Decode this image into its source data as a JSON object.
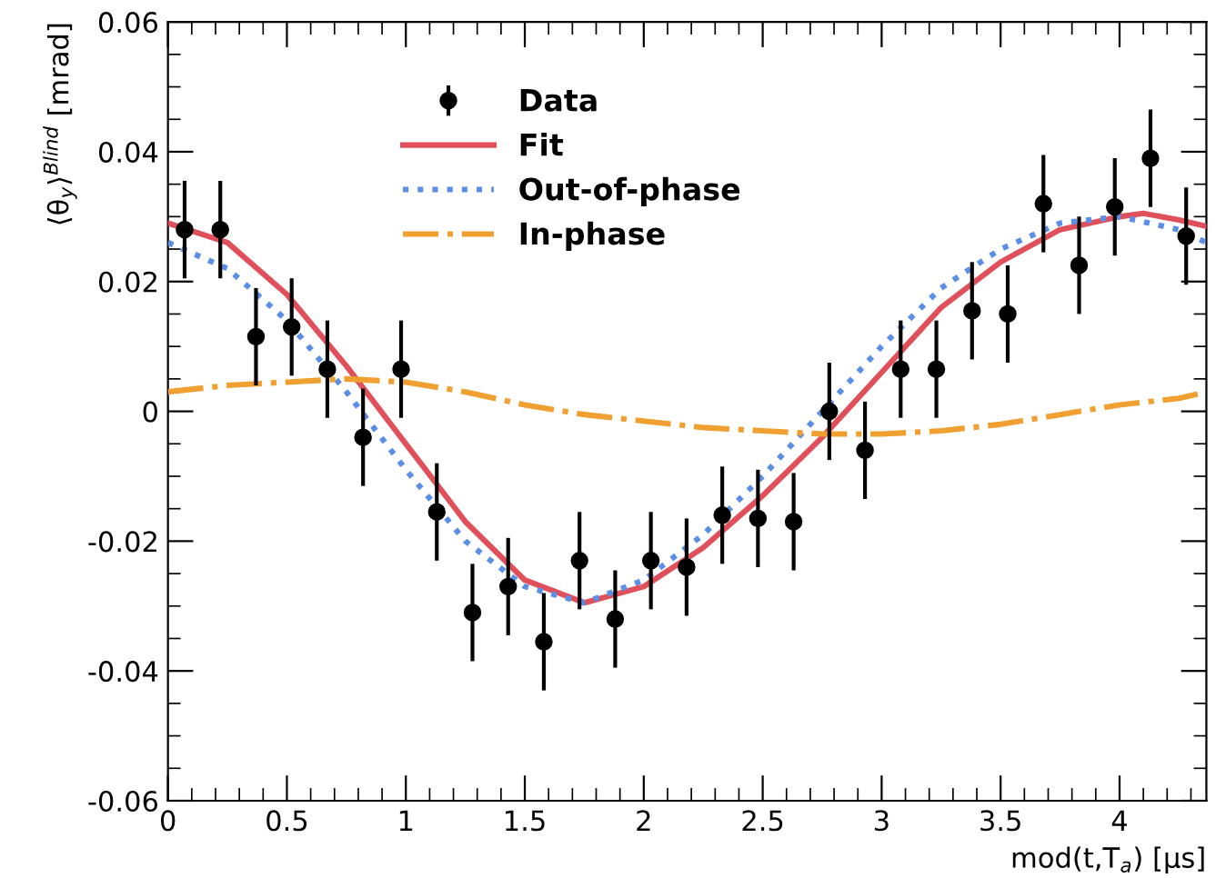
{
  "chart_data": {
    "type": "scatter",
    "xlabel": "mod(t,T$_{a}$) [μs]",
    "ylabel": "⟨θ$_{y}$⟩$^{Blind}$ [mrad]",
    "xlim": [
      0,
      4.365
    ],
    "xticks": [
      0,
      0.5,
      1,
      1.5,
      2,
      2.5,
      3,
      3.5,
      4
    ],
    "ylim": [
      -0.06,
      0.06
    ],
    "yticks": [
      -0.06,
      -0.04,
      -0.02,
      0,
      0.02,
      0.04,
      0.06
    ],
    "grid": false,
    "legend": "top left",
    "series": [
      {
        "name": "Data",
        "color": "#000000",
        "marker": "circle",
        "x": [
          0.07,
          0.22,
          0.37,
          0.52,
          0.67,
          0.82,
          0.98,
          1.13,
          1.28,
          1.43,
          1.58,
          1.73,
          1.88,
          2.03,
          2.18,
          2.33,
          2.48,
          2.63,
          2.78,
          2.93,
          3.08,
          3.23,
          3.38,
          3.53,
          3.68,
          3.83,
          3.98,
          4.13,
          4.28
        ],
        "values": [
          0.028,
          0.028,
          0.0115,
          0.013,
          0.0065,
          -0.004,
          0.0065,
          -0.0155,
          -0.031,
          -0.027,
          -0.0355,
          -0.023,
          -0.032,
          -0.023,
          -0.024,
          -0.016,
          -0.0165,
          -0.017,
          0.0,
          -0.006,
          0.0065,
          0.0065,
          0.0155,
          0.015,
          0.032,
          0.0225,
          0.0315,
          0.039,
          0.027
        ],
        "errors": [
          0.0075,
          0.0075,
          0.0075,
          0.0075,
          0.0075,
          0.0075,
          0.0075,
          0.0075,
          0.0075,
          0.0075,
          0.0075,
          0.0075,
          0.0075,
          0.0075,
          0.0075,
          0.0075,
          0.0075,
          0.0075,
          0.0075,
          0.0075,
          0.0075,
          0.0075,
          0.0075,
          0.0075,
          0.0075,
          0.0075,
          0.0075,
          0.0075,
          0.0075
        ]
      },
      {
        "name": "Fit",
        "type": "line",
        "color": "#e0505a",
        "line_style": "solid",
        "x": [
          0,
          0.25,
          0.5,
          0.75,
          1.0,
          1.25,
          1.5,
          1.75,
          2.0,
          2.25,
          2.5,
          2.75,
          3.0,
          3.25,
          3.5,
          3.75,
          4.0,
          4.1,
          4.25,
          4.365
        ],
        "values": [
          0.029,
          0.026,
          0.018,
          0.007,
          -0.005,
          -0.017,
          -0.026,
          -0.0295,
          -0.027,
          -0.021,
          -0.013,
          -0.004,
          0.006,
          0.016,
          0.023,
          0.028,
          0.03,
          0.0305,
          0.0295,
          0.0285
        ]
      },
      {
        "name": "Out-of-phase",
        "type": "line",
        "color": "#5b8ee6",
        "line_style": "dotted",
        "x": [
          0,
          0.25,
          0.5,
          0.75,
          1.0,
          1.25,
          1.5,
          1.75,
          2.0,
          2.25,
          2.5,
          2.75,
          3.0,
          3.25,
          3.5,
          3.75,
          4.0,
          4.25,
          4.365
        ],
        "values": [
          0.026,
          0.022,
          0.014,
          0.003,
          -0.009,
          -0.02,
          -0.027,
          -0.0295,
          -0.026,
          -0.019,
          -0.01,
          0.0,
          0.01,
          0.019,
          0.025,
          0.029,
          0.03,
          0.028,
          0.026
        ]
      },
      {
        "name": "In-phase",
        "type": "line",
        "color": "#f0a030",
        "line_style": "dashdot",
        "x": [
          0,
          0.25,
          0.5,
          0.75,
          1.0,
          1.25,
          1.5,
          1.75,
          2.0,
          2.25,
          2.5,
          2.75,
          3.0,
          3.25,
          3.5,
          3.75,
          4.0,
          4.25,
          4.365
        ],
        "values": [
          0.003,
          0.004,
          0.0045,
          0.005,
          0.0045,
          0.003,
          0.001,
          -0.0005,
          -0.0015,
          -0.0025,
          -0.003,
          -0.0035,
          -0.0035,
          -0.003,
          -0.002,
          -0.0005,
          0.001,
          0.002,
          0.003
        ]
      }
    ]
  }
}
